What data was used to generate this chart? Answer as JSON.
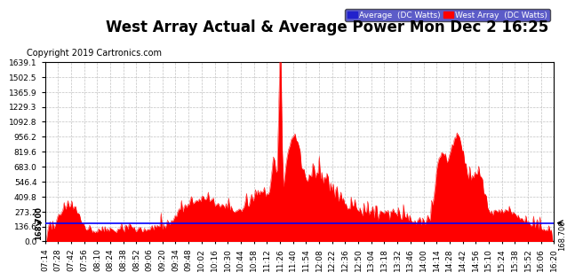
{
  "title": "West Array Actual & Average Power Mon Dec 2 16:25",
  "copyright": "Copyright 2019 Cartronics.com",
  "legend_blue_label": "Average  (DC Watts)",
  "legend_red_label": "West Array  (DC Watts)",
  "ymin": 0.0,
  "ymax": 1639.1,
  "yticks": [
    0.0,
    136.6,
    273.2,
    409.8,
    546.4,
    683.0,
    819.6,
    956.2,
    1092.8,
    1229.3,
    1365.9,
    1502.5,
    1639.1
  ],
  "average_line": 168.7,
  "average_line_label": "168.700",
  "title_fontsize": 12,
  "copyright_fontsize": 7,
  "axis_label_fontsize": 6.5,
  "background_color": "#ffffff",
  "plot_bg_color": "#ffffff",
  "grid_color": "#bbbbbb",
  "fill_color": "#ff0000",
  "line_color": "#ff0000",
  "avg_line_color": "#0000ff",
  "x_tick_labels": [
    "07:14",
    "07:28",
    "07:42",
    "07:56",
    "08:10",
    "08:24",
    "08:38",
    "08:52",
    "09:06",
    "09:20",
    "09:34",
    "09:48",
    "10:02",
    "10:16",
    "10:30",
    "10:44",
    "10:58",
    "11:12",
    "11:26",
    "11:40",
    "11:54",
    "12:08",
    "12:22",
    "12:36",
    "12:50",
    "13:04",
    "13:18",
    "13:32",
    "13:46",
    "14:00",
    "14:14",
    "14:28",
    "14:42",
    "14:56",
    "15:10",
    "15:24",
    "15:38",
    "15:52",
    "16:06",
    "16:20"
  ]
}
